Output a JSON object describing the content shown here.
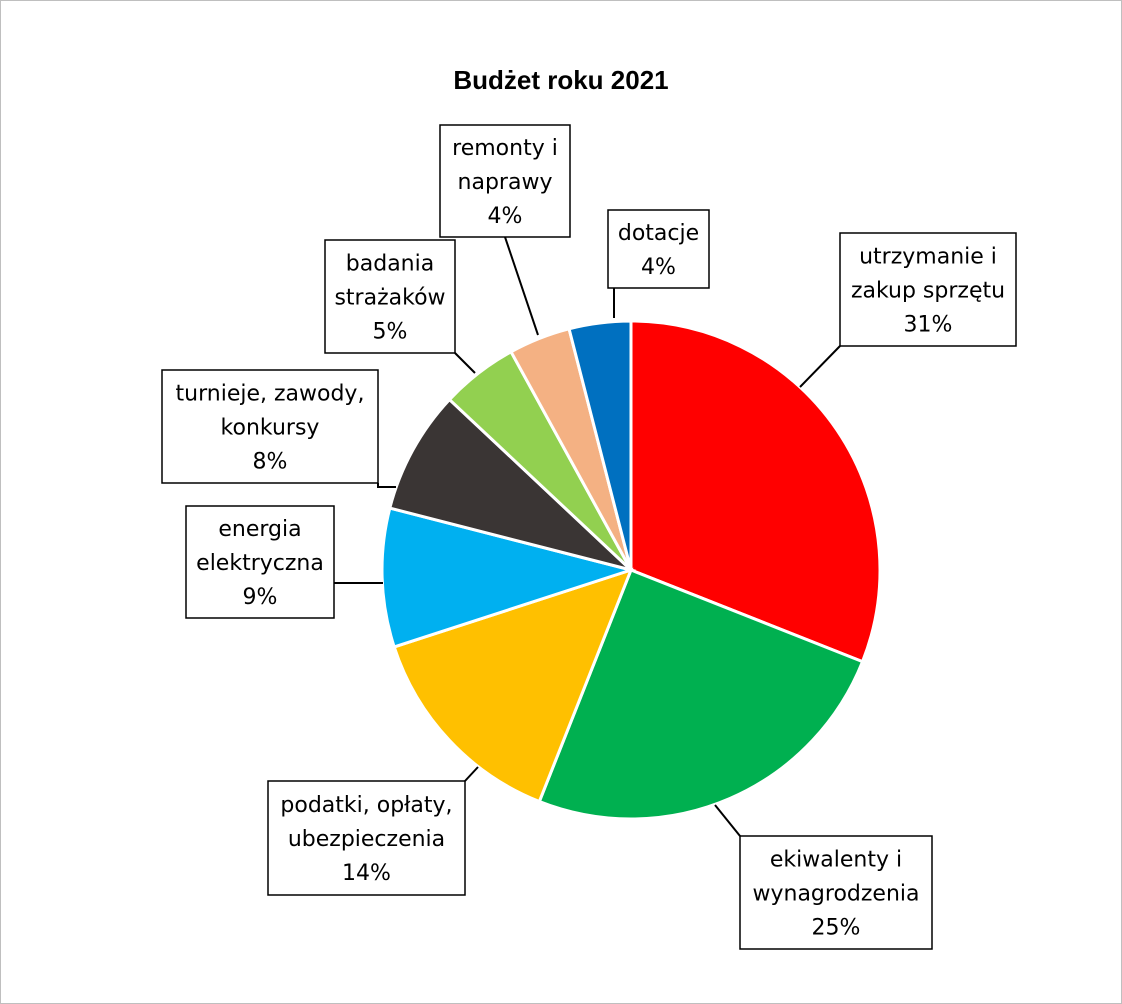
{
  "chart_data": {
    "type": "pie",
    "title": "Budżet roku 2021",
    "slices": [
      {
        "label_lines": [
          "utrzymanie i",
          "zakup sprzętu"
        ],
        "percent_label": "31%",
        "value": 31,
        "color": "#ff0000"
      },
      {
        "label_lines": [
          "ekiwalenty i",
          "wynagrodzenia"
        ],
        "percent_label": "25%",
        "value": 25,
        "color": "#00b050"
      },
      {
        "label_lines": [
          "podatki, opłaty,",
          "ubezpieczenia"
        ],
        "percent_label": "14%",
        "value": 14,
        "color": "#ffc000"
      },
      {
        "label_lines": [
          "energia",
          "elektryczna"
        ],
        "percent_label": "9%",
        "value": 9,
        "color": "#00b0f0"
      },
      {
        "label_lines": [
          "turnieje, zawody,",
          "konkursy"
        ],
        "percent_label": "8%",
        "value": 8,
        "color": "#3a3534"
      },
      {
        "label_lines": [
          "badania",
          "strażaków"
        ],
        "percent_label": "5%",
        "value": 5,
        "color": "#92d050"
      },
      {
        "label_lines": [
          "remonty i",
          "naprawy"
        ],
        "percent_label": "4%",
        "value": 4,
        "color": "#f4b183"
      },
      {
        "label_lines": [
          "dotacje"
        ],
        "percent_label": "4%",
        "value": 4,
        "color": "#0070c0"
      }
    ]
  }
}
